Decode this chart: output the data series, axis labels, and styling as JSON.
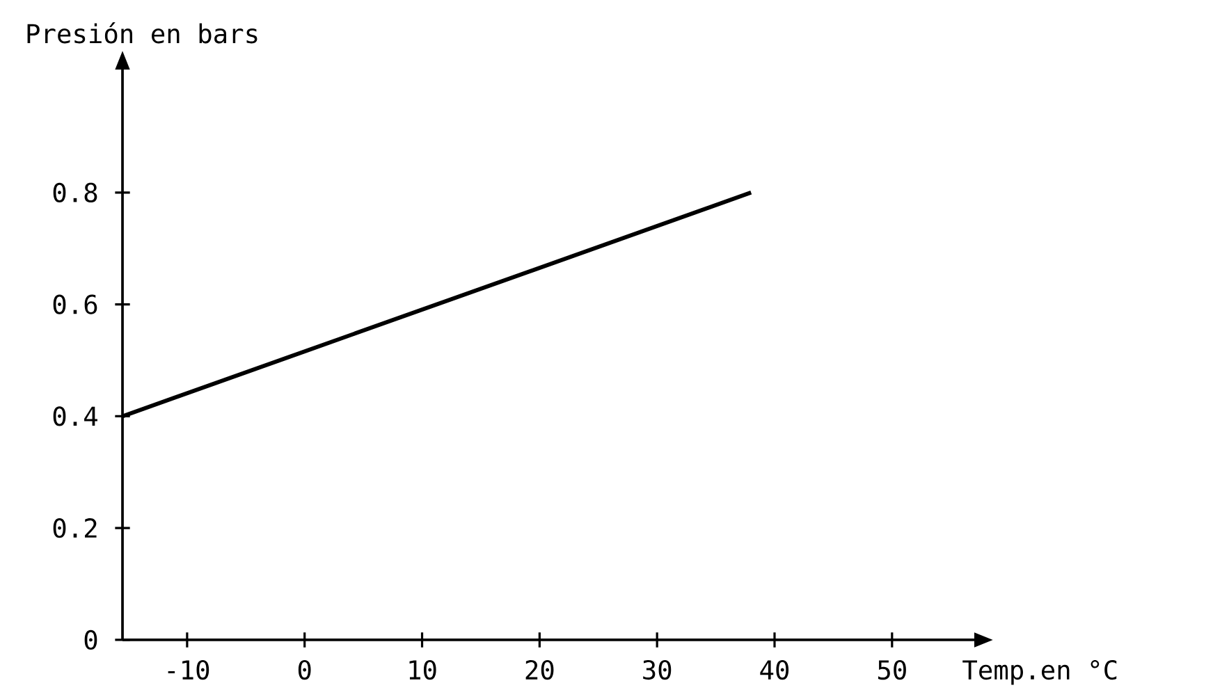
{
  "chart_data": {
    "type": "line",
    "xlabel": "Temp.en °C",
    "ylabel": "Presión en bars",
    "x": [
      -15.5,
      38
    ],
    "series": [
      {
        "color": "#000000",
        "values": [
          0.4,
          0.8
        ]
      }
    ],
    "xlim": [
      -15.5,
      57
    ],
    "ylim": [
      0,
      1.02
    ],
    "xticks": [
      -10,
      0,
      10,
      20,
      30,
      40,
      50
    ],
    "yticks": [
      0,
      0.2,
      0.4,
      0.6,
      0.8
    ],
    "grid": false,
    "marker": "none",
    "line_style": "solid"
  }
}
